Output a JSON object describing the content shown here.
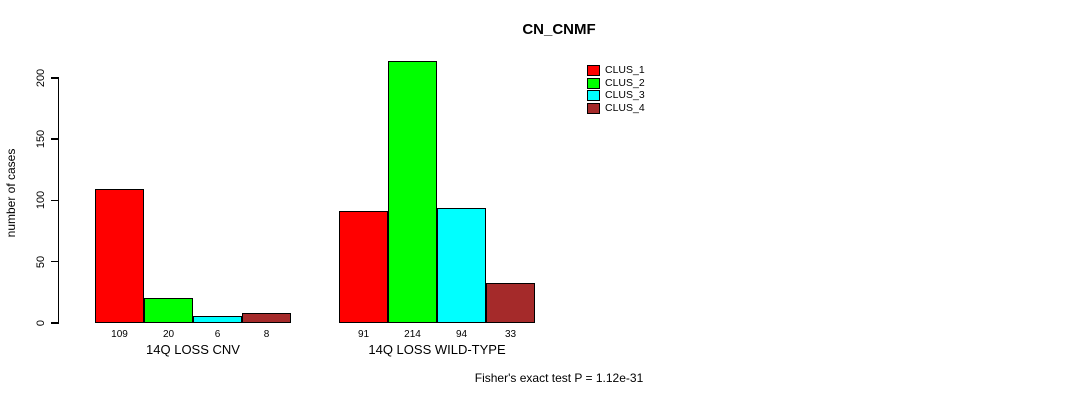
{
  "chart_data": {
    "type": "bar",
    "title": "CN_CNMF",
    "ylabel": "number of cases",
    "xlabel": "",
    "categories": [
      "14Q LOSS CNV",
      "14Q LOSS WILD-TYPE"
    ],
    "series": [
      {
        "name": "CLUS_1",
        "color": "#FF0000",
        "values": [
          109,
          91
        ]
      },
      {
        "name": "CLUS_2",
        "color": "#00FF00",
        "values": [
          20,
          214
        ]
      },
      {
        "name": "CLUS_3",
        "color": "#00FFFF",
        "values": [
          6,
          94
        ]
      },
      {
        "name": "CLUS_4",
        "color": "#A52A2A",
        "values": [
          8,
          33
        ]
      }
    ],
    "yticks": [
      0,
      50,
      100,
      150,
      200
    ],
    "ylim": [
      0,
      200
    ],
    "grid": false,
    "bar_value_labels": true,
    "legend_position": "top-right",
    "annotation": "Fisher's exact test P = 1.12e-31"
  }
}
